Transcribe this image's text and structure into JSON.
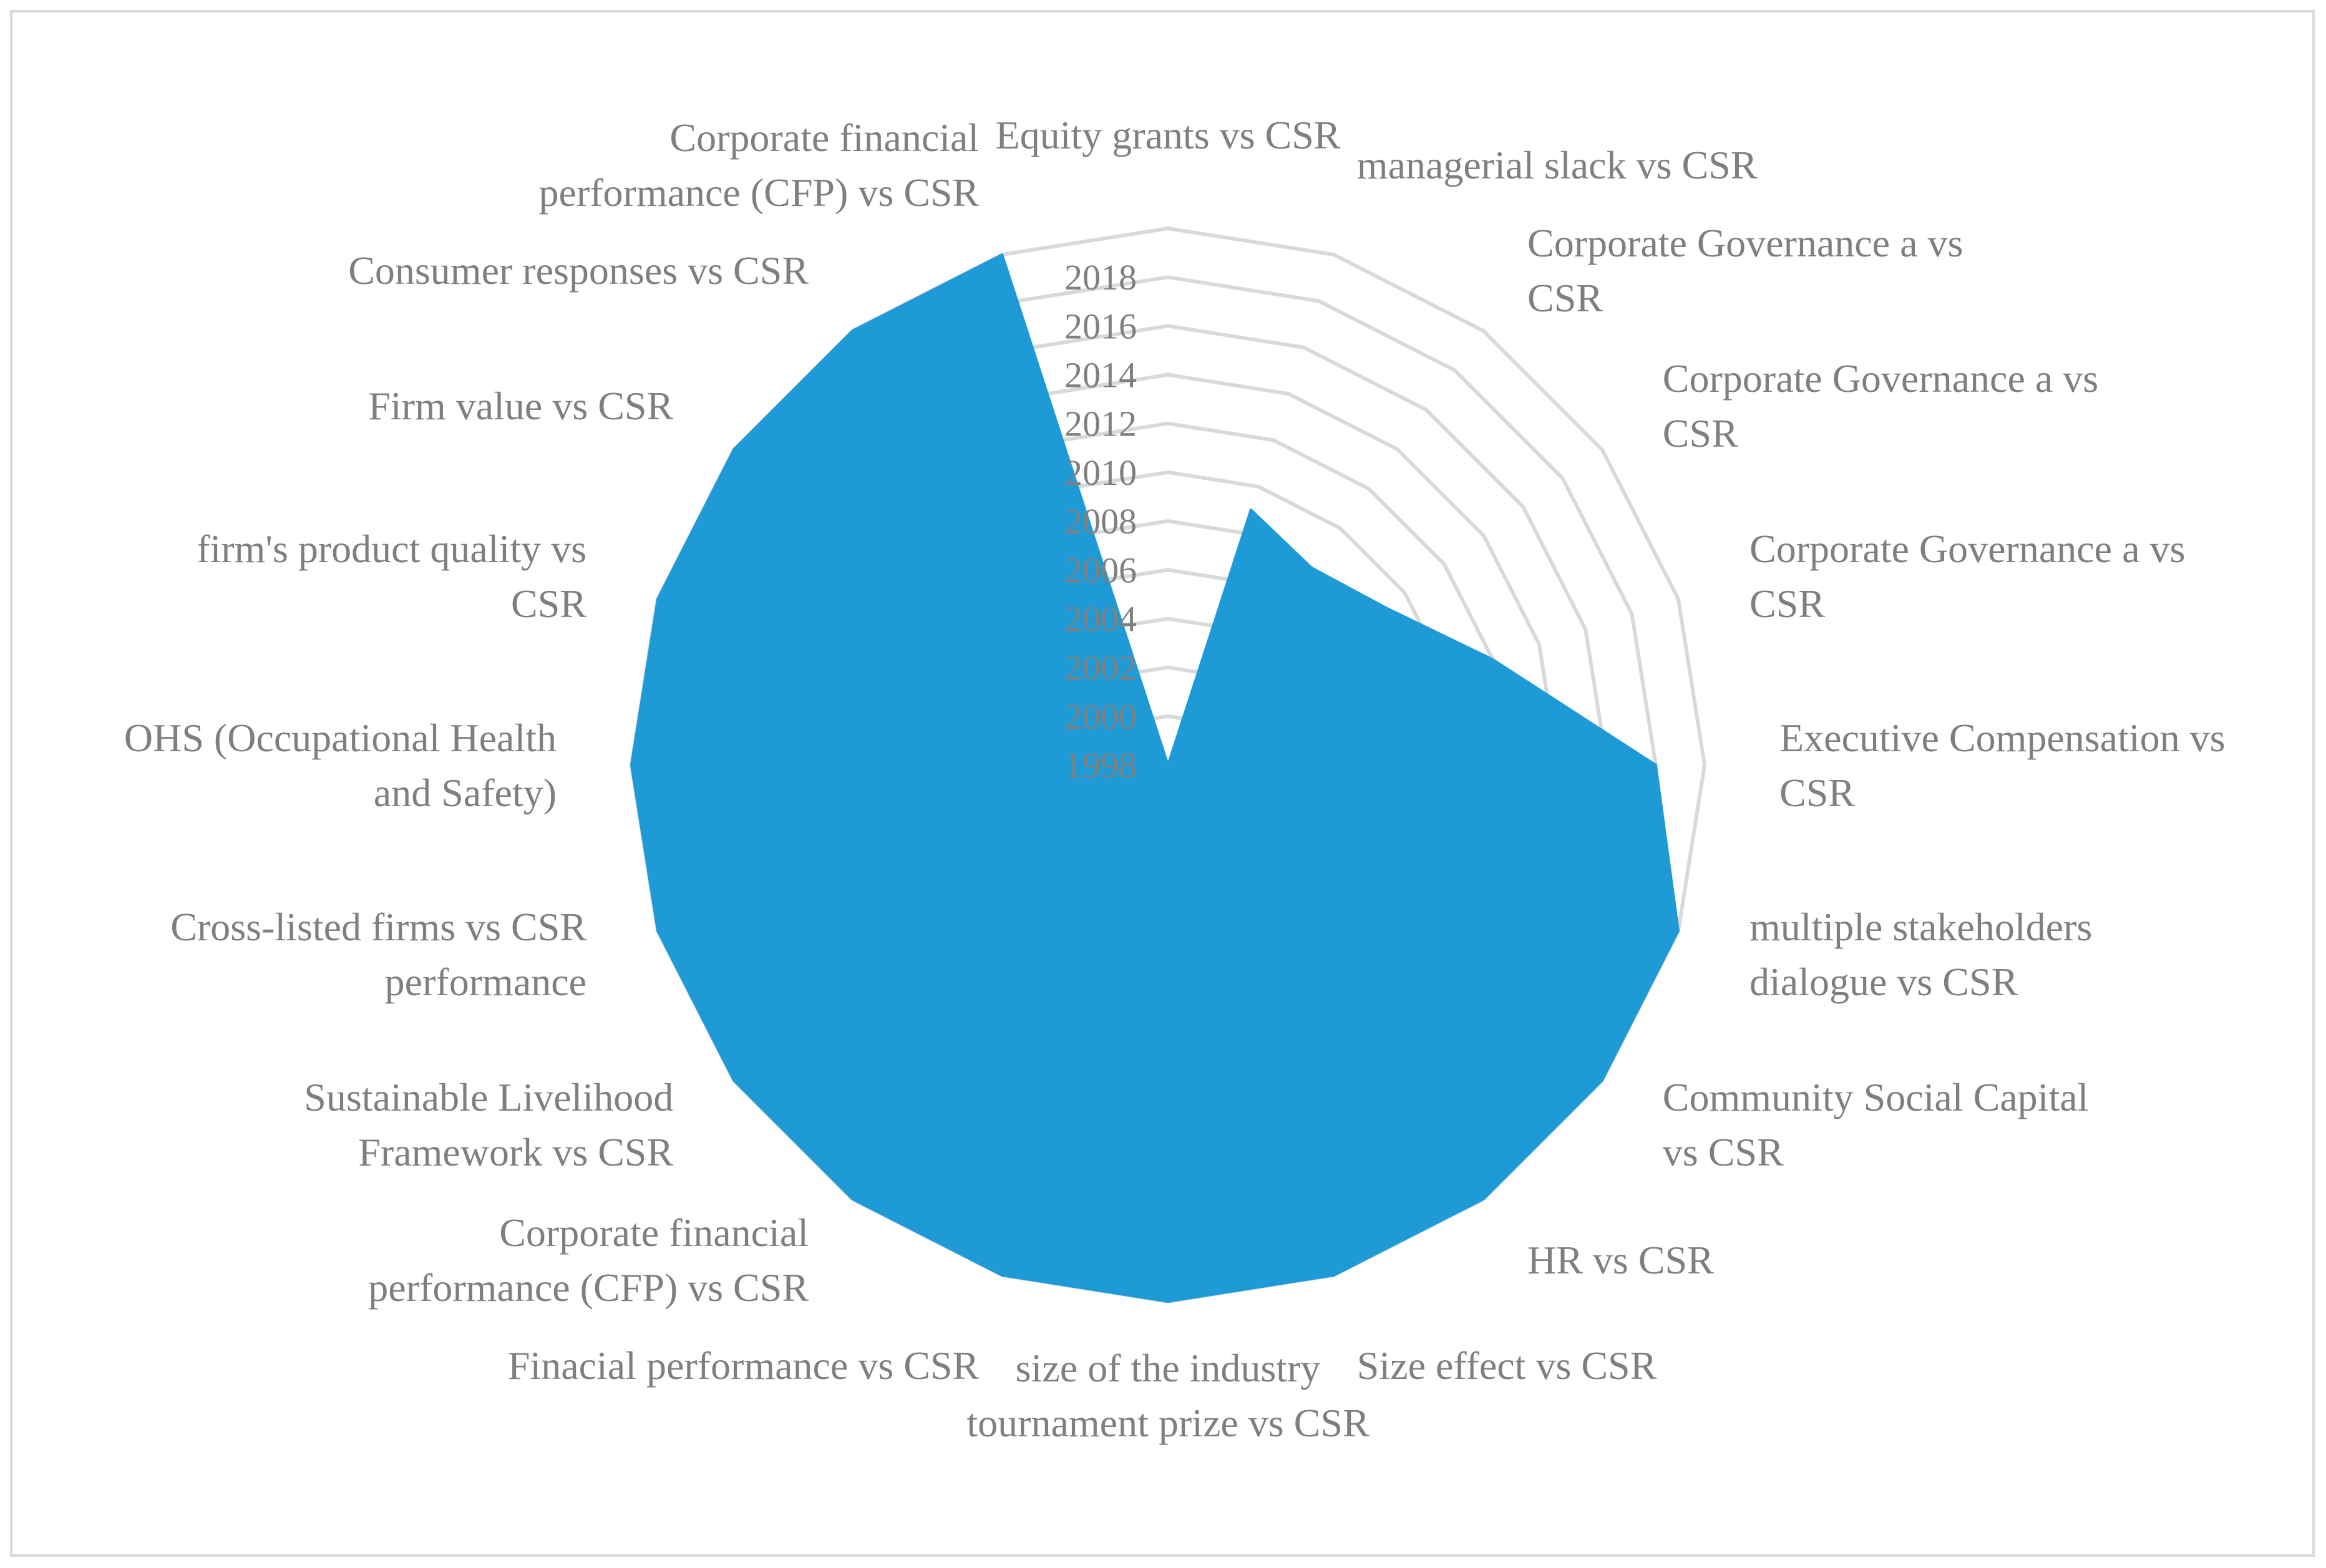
{
  "chart_data": {
    "type": "radar",
    "title": "",
    "categories": [
      [
        "Equity grants vs CSR"
      ],
      [
        "managerial slack vs CSR"
      ],
      [
        "Corporate Governance a vs",
        "CSR"
      ],
      [
        "Corporate Governance a vs",
        "CSR"
      ],
      [
        "Corporate Governance a vs",
        "CSR"
      ],
      [
        "Executive Compensation vs",
        "CSR"
      ],
      [
        "multiple stakeholders",
        "dialogue vs CSR"
      ],
      [
        "Community Social Capital",
        "vs CSR"
      ],
      [
        "HR vs CSR"
      ],
      [
        "Size effect vs CSR"
      ],
      [
        "size of the industry",
        "tournament prize vs CSR"
      ],
      [
        "Finacial performance vs CSR"
      ],
      [
        "Corporate financial",
        "performance (CFP) vs CSR"
      ],
      [
        "Sustainable Livelihood",
        "Framework  vs CSR"
      ],
      [
        "Cross-listed firms vs CSR",
        "performance"
      ],
      [
        "OHS (Occupational Health",
        "and Safety)"
      ],
      [
        "firm's product quality vs",
        "CSR"
      ],
      [
        "Firm value vs CSR"
      ],
      [
        "Consumer responses vs CSR"
      ],
      [
        "Corporate financial",
        "performance (CFP) vs CSR"
      ]
    ],
    "values": [
      1998,
      2009,
      2008,
      2009,
      2012,
      2018,
      2020,
      2020,
      2020,
      2020,
      2020,
      2020,
      2020,
      2020,
      2020,
      2020,
      2020,
      2020,
      2020,
      2020
    ],
    "rlim": [
      1998,
      2020
    ],
    "ticks": [
      "1998",
      "2000",
      "2002",
      "2004",
      "2006",
      "2008",
      "2010",
      "2012",
      "2014",
      "2016",
      "2018"
    ],
    "grid": true,
    "legend": "none",
    "colors": {
      "series": "#1e9bd7",
      "grid": "#d9d9d9",
      "text": "#7f7f7f"
    }
  }
}
